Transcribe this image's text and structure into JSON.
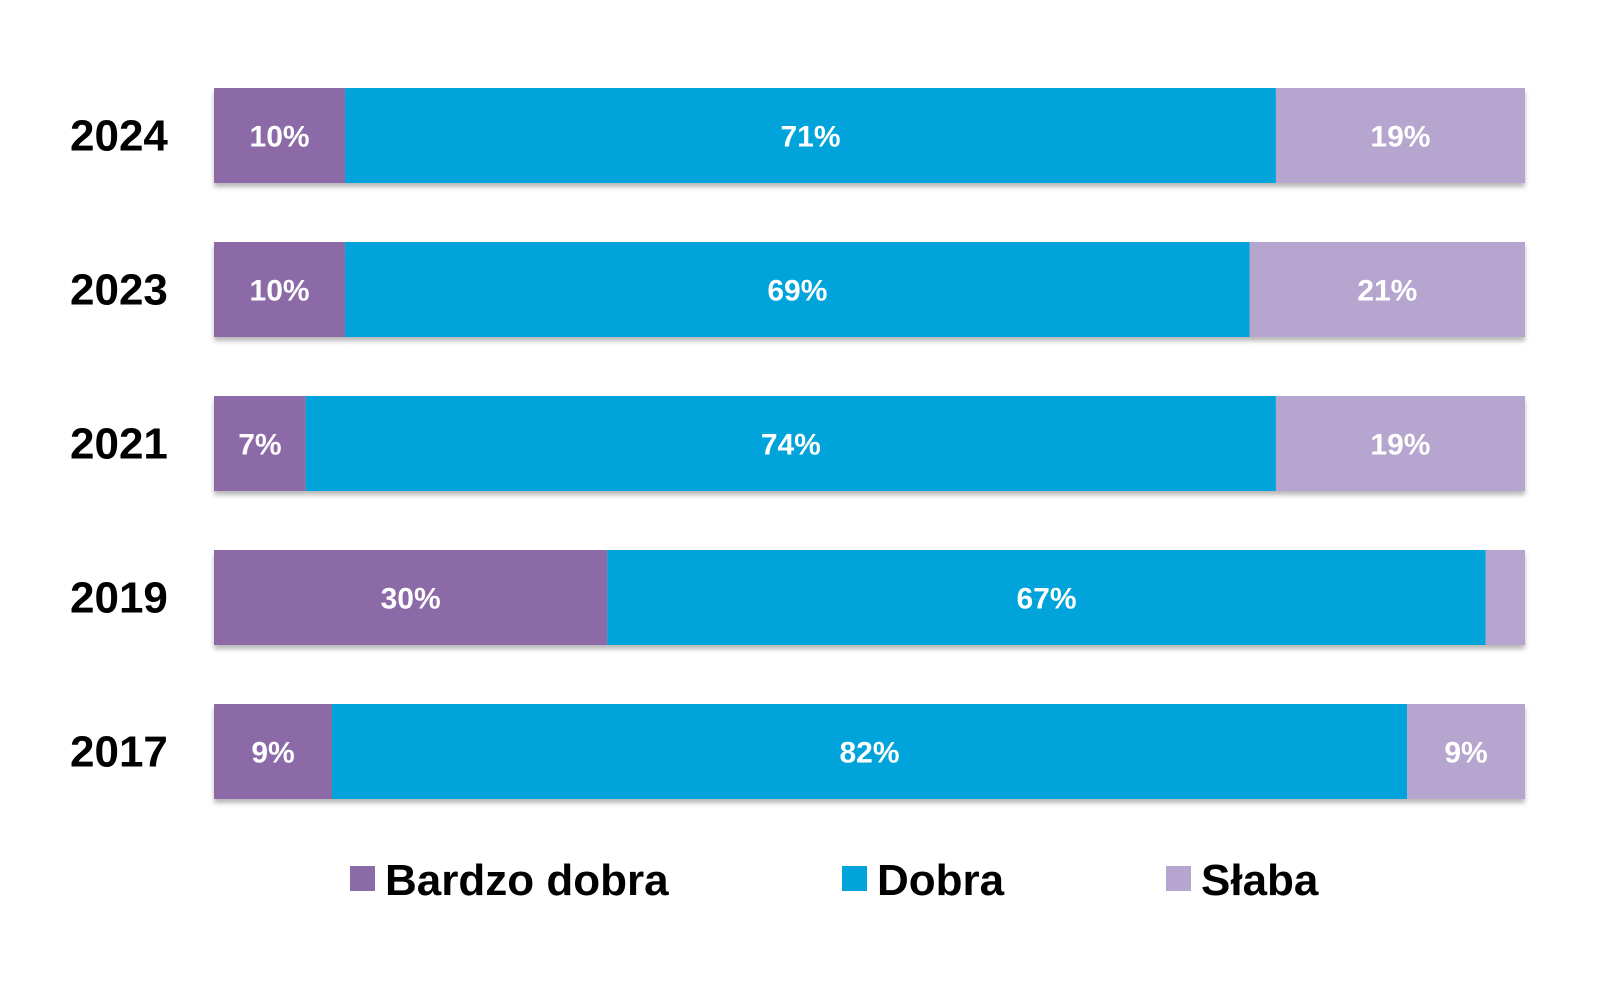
{
  "chart_data": {
    "type": "bar",
    "orientation": "horizontal",
    "stacked": true,
    "categories": [
      "2024",
      "2023",
      "2021",
      "2019",
      "2017"
    ],
    "series": [
      {
        "name": "Bardzo dobra",
        "color": "#8b6ba7",
        "values": [
          10,
          10,
          7,
          30,
          9
        ],
        "labels": [
          "10%",
          "10%",
          "7%",
          "30%",
          "9%"
        ]
      },
      {
        "name": "Dobra",
        "color": "#00a3da",
        "values": [
          71,
          69,
          74,
          67,
          82
        ],
        "labels": [
          "71%",
          "69%",
          "74%",
          "67%",
          "82%"
        ]
      },
      {
        "name": "Słaba",
        "color": "#b5a5cf",
        "values": [
          19,
          21,
          19,
          3,
          9
        ],
        "labels": [
          "19%",
          "21%",
          "19%",
          "",
          "9%"
        ]
      }
    ],
    "xlim": [
      0,
      100
    ],
    "grid": false,
    "legend_position": "bottom",
    "title": "",
    "xlabel": "",
    "ylabel": ""
  }
}
